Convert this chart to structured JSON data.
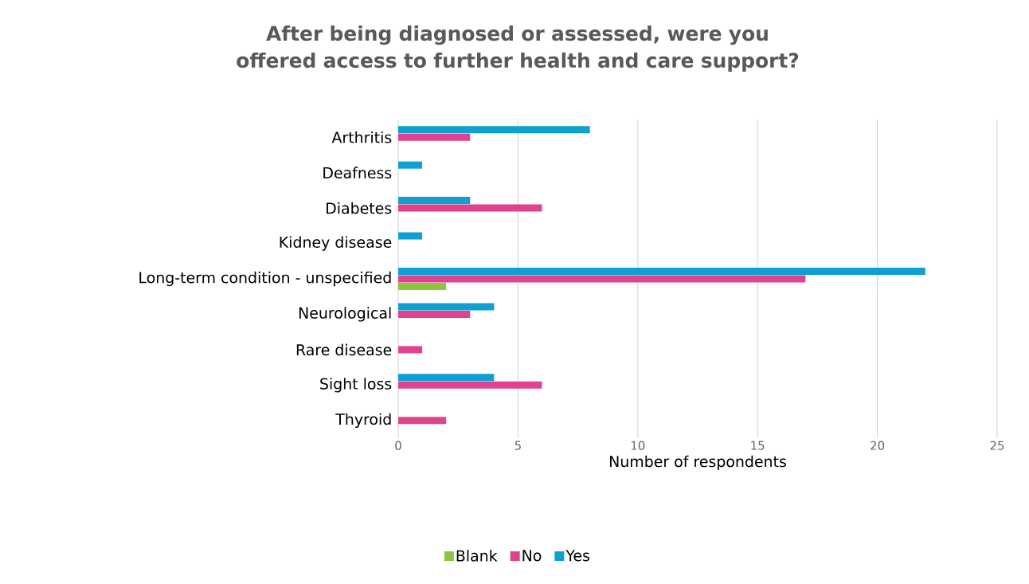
{
  "chart_data": {
    "type": "bar",
    "orientation": "horizontal",
    "title": "After being diagnosed or assessed, were you offered access to further health and care support?",
    "xlabel": "Number of respondents",
    "categories": [
      "Arthritis",
      "Deafness",
      "Diabetes",
      "Kidney disease",
      "Long-term condition - unspecified",
      "Neurological",
      "Rare disease",
      "Sight loss",
      "Thyroid"
    ],
    "series": [
      {
        "name": "Blank",
        "color": "#8cc63f",
        "values": [
          null,
          null,
          null,
          null,
          2,
          null,
          null,
          null,
          null
        ]
      },
      {
        "name": "No",
        "color": "#e0428d",
        "values": [
          3,
          null,
          6,
          null,
          17,
          3,
          1,
          6,
          2
        ]
      },
      {
        "name": "Yes",
        "color": "#0ea0d2",
        "values": [
          8,
          1,
          3,
          1,
          22,
          4,
          null,
          4,
          null
        ]
      }
    ],
    "xlim": [
      0,
      25
    ],
    "xticks": [
      0,
      5,
      10,
      15,
      20,
      25
    ],
    "grid": "x",
    "legend": "bottom"
  }
}
